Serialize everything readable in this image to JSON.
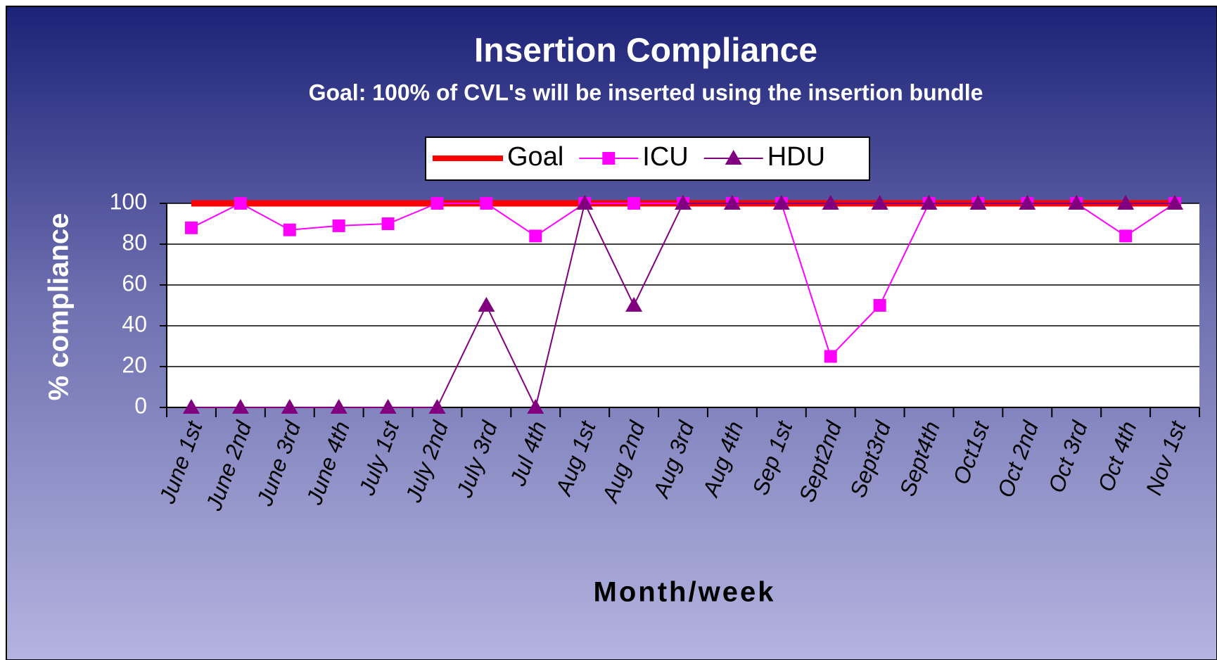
{
  "chart_data": {
    "type": "line",
    "title": "Insertion Compliance",
    "subtitle": "Goal: 100% of CVL's will be inserted using the insertion bundle",
    "x_label": "Month/week",
    "y_label": "% compliance",
    "categories": [
      "June 1st",
      "June 2nd",
      "June 3rd",
      "June 4th",
      "July 1st",
      "July 2nd",
      "July 3rd",
      "Jul 4th",
      "Aug 1st",
      "Aug 2nd",
      "Aug 3rd",
      "Aug 4th",
      "Sep 1st",
      "Sept2nd",
      "Sept3rd",
      "Sept4th",
      "Oct1st",
      "Oct 2nd",
      "Oct 3rd",
      "Oct 4th",
      "Nov 1st"
    ],
    "series": [
      {
        "name": "Goal",
        "color": "#ff0000",
        "marker": "none",
        "values": [
          100,
          100,
          100,
          100,
          100,
          100,
          100,
          100,
          100,
          100,
          100,
          100,
          100,
          100,
          100,
          100,
          100,
          100,
          100,
          100,
          100
        ]
      },
      {
        "name": "ICU",
        "color": "#ff00ff",
        "marker": "square",
        "values": [
          88,
          100,
          87,
          89,
          90,
          100,
          100,
          84,
          100,
          100,
          100,
          100,
          100,
          25,
          50,
          100,
          100,
          100,
          100,
          84,
          100
        ]
      },
      {
        "name": "HDU",
        "color": "#800080",
        "marker": "triangle",
        "values": [
          0,
          0,
          0,
          0,
          0,
          0,
          50,
          0,
          100,
          50,
          100,
          100,
          100,
          100,
          100,
          100,
          100,
          100,
          100,
          100,
          100
        ]
      }
    ],
    "ylim": [
      0,
      100
    ],
    "yticks": [
      0,
      20,
      40,
      60,
      80,
      100
    ],
    "grid": true,
    "legend": "top"
  }
}
